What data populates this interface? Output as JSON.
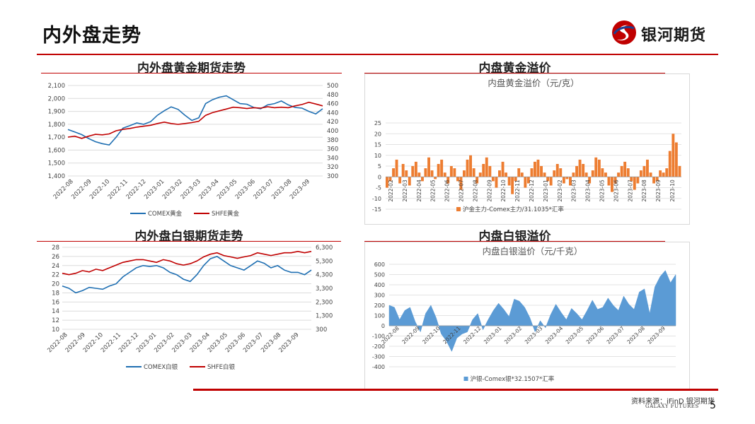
{
  "header": {
    "page_title": "内外盘走势",
    "logo_text": "银河期货"
  },
  "footer": {
    "source": "资料来源：iFinD 银河期货",
    "company_en": "GALAXY FUTURES",
    "page_number": "5"
  },
  "colors": {
    "accent_red": "#c00000",
    "comex_blue": "#1f6fb2",
    "shfe_red": "#c00000",
    "premium_orange": "#ed7d31",
    "premium_blue": "#5b9bd5"
  },
  "chart_data": [
    {
      "id": "gold_trend",
      "panel_title": "内外盘黄金期货走势",
      "type": "line",
      "x_ticks": [
        "2022-08",
        "2022-09",
        "2022-10",
        "2022-11",
        "2022-12",
        "2023-01",
        "2023-02",
        "2023-03",
        "2023-04",
        "2023-05",
        "2023-06",
        "2023-07",
        "2023-08",
        "2023-09"
      ],
      "y_left": {
        "range": [
          1400,
          2100
        ],
        "ticks": [
          "1,400",
          "1,500",
          "1,600",
          "1,700",
          "1,800",
          "1,900",
          "2,000",
          "2,100"
        ]
      },
      "y_right": {
        "range": [
          300,
          500
        ],
        "ticks": [
          "300",
          "320",
          "340",
          "360",
          "380",
          "400",
          "420",
          "440",
          "460",
          "480",
          "500"
        ]
      },
      "grid": true,
      "legend_position": "bottom",
      "series": [
        {
          "name": "COMEX黄金",
          "axis": "left",
          "color": "#1f6fb2",
          "values": [
            1760,
            1740,
            1720,
            1690,
            1665,
            1650,
            1640,
            1700,
            1770,
            1790,
            1810,
            1800,
            1820,
            1870,
            1905,
            1935,
            1915,
            1870,
            1830,
            1850,
            1960,
            1990,
            2010,
            2020,
            1990,
            1960,
            1955,
            1930,
            1920,
            1950,
            1960,
            1980,
            1950,
            1930,
            1925,
            1900,
            1880,
            1920
          ]
        },
        {
          "name": "SHFE黄金",
          "axis": "right",
          "color": "#c00000",
          "values": [
            386,
            388,
            383,
            388,
            392,
            391,
            393,
            400,
            403,
            405,
            408,
            410,
            412,
            416,
            419,
            416,
            414,
            416,
            418,
            421,
            434,
            440,
            444,
            448,
            452,
            451,
            449,
            451,
            450,
            453,
            451,
            452,
            451,
            455,
            458,
            463,
            459,
            455
          ]
        }
      ]
    },
    {
      "id": "gold_premium",
      "panel_title": "内盘黄金溢价",
      "type": "bar",
      "title": "内盘黄金溢价（元/克）",
      "x_ticks": [
        "2022-02",
        "2022-03",
        "2022-04",
        "2022-05",
        "2022-06",
        "2022-07",
        "2022-08",
        "2022-09",
        "2022-10",
        "2022-11",
        "2022-12",
        "2023-01",
        "2023-02",
        "2023-03",
        "2023-04",
        "2023-05",
        "2023-06",
        "2023-07",
        "2023-08",
        "2023-09",
        "2023-10"
      ],
      "ylim": [
        -15,
        25
      ],
      "y_ticks": [
        "25",
        "20",
        "15",
        "10",
        "5",
        "0",
        "-5",
        "-10",
        "-15"
      ],
      "legend_position": "bottom",
      "series": [
        {
          "name": "沪金主力-Comex主力/31.1035*汇率",
          "color": "#ed7d31",
          "values": [
            -5,
            -2,
            4,
            8,
            -3,
            6,
            3,
            -4,
            5,
            7,
            2,
            -2,
            4,
            9,
            3,
            -1,
            6,
            8,
            2,
            -3,
            5,
            4,
            -2,
            -6,
            3,
            8,
            10,
            4,
            -3,
            2,
            6,
            9,
            5,
            -2,
            -5,
            3,
            7,
            2,
            -4,
            -8,
            -2,
            4,
            2,
            -5,
            -3,
            4,
            7,
            8,
            5,
            2,
            -2,
            -4,
            3,
            6,
            4,
            -3,
            -1,
            -4,
            2,
            5,
            8,
            6,
            2,
            -3,
            3,
            9,
            8,
            4,
            2,
            -4,
            -7,
            -3,
            2,
            5,
            7,
            4,
            -2,
            -6,
            -3,
            3,
            5,
            8,
            2,
            -3,
            -2,
            3,
            2,
            4,
            12,
            20,
            16,
            5
          ]
        }
      ]
    },
    {
      "id": "silver_trend",
      "panel_title": "内外盘白银期货走势",
      "type": "line",
      "x_ticks": [
        "2022-08",
        "2022-09",
        "2022-10",
        "2022-11",
        "2022-12",
        "2023-01",
        "2023-02",
        "2023-03",
        "2023-04",
        "2023-05",
        "2023-06",
        "2023-07",
        "2023-08",
        "2023-09"
      ],
      "y_left": {
        "range": [
          10,
          28
        ],
        "ticks": [
          "10",
          "12",
          "14",
          "16",
          "18",
          "20",
          "22",
          "24",
          "26",
          "28"
        ]
      },
      "y_right": {
        "range": [
          300,
          6300
        ],
        "ticks": [
          "300",
          "1,300",
          "2,300",
          "3,300",
          "4,300",
          "5,300",
          "6,300"
        ]
      },
      "grid": true,
      "legend_position": "bottom",
      "series": [
        {
          "name": "COMEX白银",
          "axis": "left",
          "color": "#1f6fb2",
          "values": [
            19.5,
            19.0,
            18.0,
            18.5,
            19.2,
            19.0,
            18.8,
            19.5,
            20.0,
            21.5,
            22.5,
            23.5,
            24.0,
            23.8,
            24.0,
            23.5,
            22.5,
            22.0,
            21.0,
            20.5,
            22.0,
            24.0,
            25.5,
            26.0,
            25.0,
            24.0,
            23.5,
            23.0,
            24.0,
            25.0,
            24.5,
            23.5,
            24.0,
            23.0,
            22.5,
            22.5,
            22.0,
            23.0
          ]
        },
        {
          "name": "SHFE白银",
          "axis": "right",
          "color": "#c00000",
          "values": [
            4400,
            4300,
            4400,
            4600,
            4500,
            4700,
            4600,
            4800,
            5000,
            5200,
            5300,
            5400,
            5400,
            5300,
            5200,
            5400,
            5300,
            5100,
            5000,
            5100,
            5300,
            5600,
            5800,
            5900,
            5700,
            5600,
            5500,
            5600,
            5700,
            5900,
            5800,
            5700,
            5800,
            5900,
            5900,
            6000,
            5900,
            6000
          ]
        }
      ]
    },
    {
      "id": "silver_premium",
      "panel_title": "内盘白银溢价",
      "type": "area",
      "title": "内盘白银溢价（元/千克）",
      "x_ticks": [
        "2022-08",
        "2022-09",
        "2022-10",
        "2022-11",
        "2022-12",
        "2023-01",
        "2023-02",
        "2023-03",
        "2023-04",
        "2023-05",
        "2023-06",
        "2023-07",
        "2023-08",
        "2023-09"
      ],
      "ylim": [
        -400,
        600
      ],
      "y_ticks": [
        "600",
        "500",
        "400",
        "300",
        "200",
        "100",
        "0",
        "-100",
        "-200",
        "-300",
        "-400"
      ],
      "legend_position": "bottom",
      "series": [
        {
          "name": "沪银-Comex银*32.1507*汇率",
          "color": "#5b9bd5",
          "values": [
            200,
            180,
            60,
            150,
            180,
            40,
            -60,
            120,
            200,
            80,
            -80,
            -150,
            -250,
            -120,
            -80,
            -60,
            60,
            120,
            -40,
            60,
            150,
            220,
            160,
            90,
            260,
            240,
            180,
            80,
            -60,
            50,
            -20,
            110,
            210,
            130,
            60,
            170,
            120,
            60,
            150,
            250,
            160,
            180,
            270,
            200,
            150,
            290,
            210,
            160,
            330,
            360,
            120,
            380,
            480,
            540,
            420,
            500
          ]
        }
      ]
    }
  ]
}
